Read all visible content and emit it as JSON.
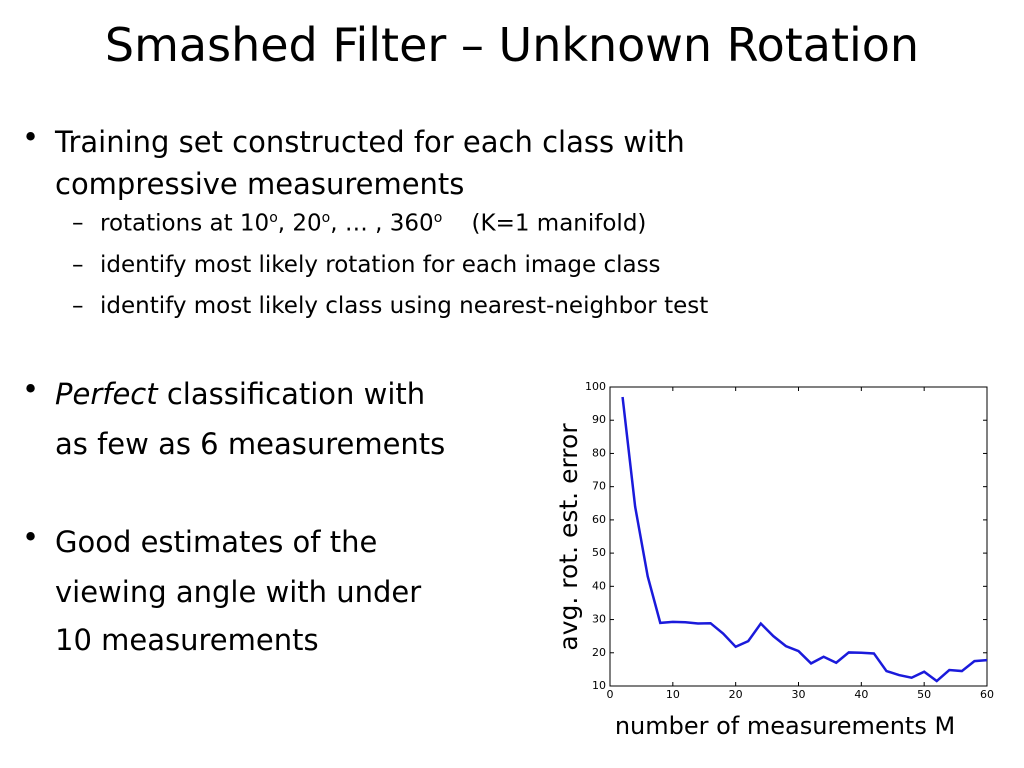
{
  "title": "Smashed Filter – Unknown Rotation",
  "bullets": [
    {
      "lines": [
        "Training set constructed for each class with",
        "compressive measurements"
      ],
      "subitems": [
        {
          "parts": [
            "rotations at 10",
            "o",
            ", 20",
            "o",
            ", … , 360",
            "o",
            "    (K=1 manifold)"
          ]
        },
        {
          "parts": [
            "identify most likely rotation for each image class"
          ]
        },
        {
          "parts": [
            "identify most likely class using nearest-neighbor test"
          ]
        }
      ]
    },
    {
      "emphasis": "Perfect",
      "lines": [
        "classification with",
        "as few as 6 measurements"
      ]
    },
    {
      "lines": [
        "Good estimates of the",
        "viewing angle with under",
        "10 measurements"
      ]
    }
  ],
  "chart_data": {
    "type": "line",
    "xlabel": "number of measurements M",
    "ylabel": "avg. rot. est. error",
    "x": [
      2,
      4,
      6,
      8,
      10,
      12,
      14,
      16,
      18,
      20,
      22,
      24,
      26,
      28,
      30,
      32,
      34,
      36,
      38,
      40,
      42,
      44,
      46,
      48,
      50,
      52,
      54,
      56,
      58,
      60
    ],
    "series": [
      {
        "color": "#1a1adb",
        "values": [
          97,
          64,
          43,
          29,
          29.3,
          29.2,
          28.8,
          28.9,
          25.8,
          21.8,
          23.5,
          28.8,
          25,
          22,
          20.5,
          16.8,
          18.8,
          17,
          20.1,
          20,
          19.8,
          14.5,
          13.3,
          12.5,
          14.3,
          11.5,
          14.8,
          14.5,
          17.5,
          17.8
        ]
      }
    ],
    "xlim": [
      0,
      60
    ],
    "xticks": [
      0,
      10,
      20,
      30,
      40,
      50,
      60
    ],
    "ylim": [
      10,
      100
    ],
    "yticks": [
      10,
      20,
      30,
      40,
      50,
      60,
      70,
      80,
      90,
      100
    ]
  }
}
